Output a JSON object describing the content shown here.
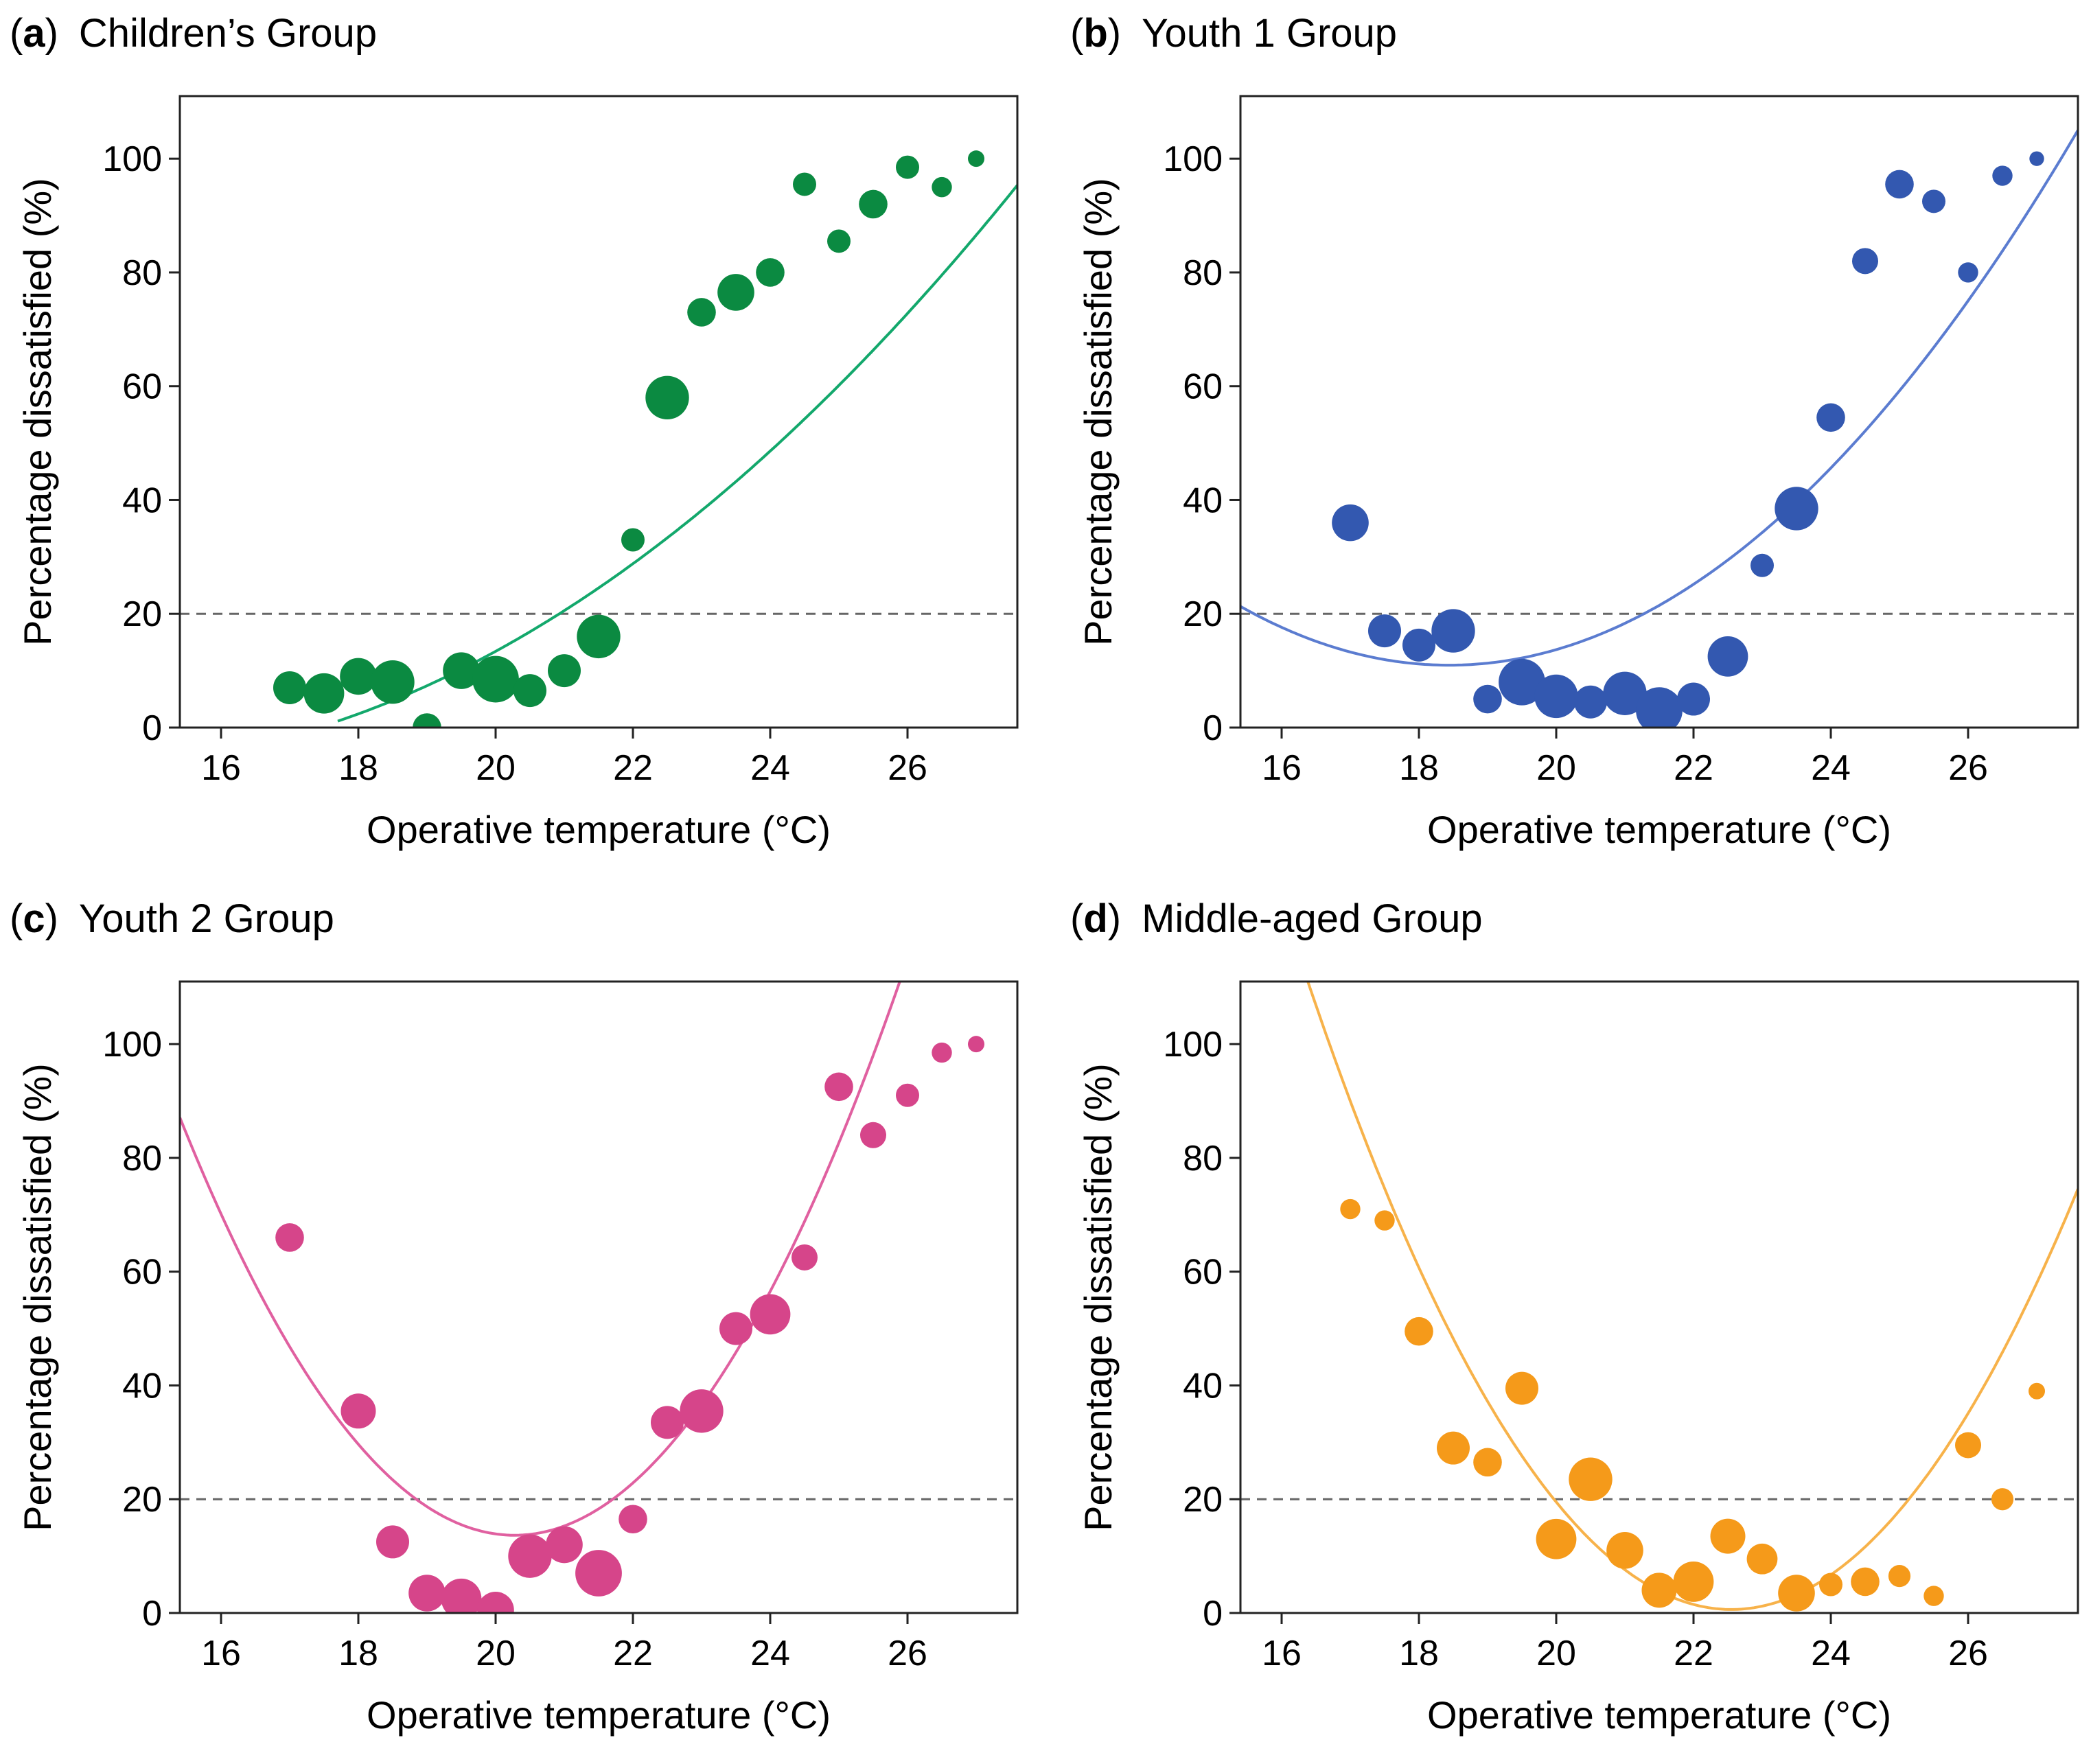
{
  "chart_data": [
    {
      "type": "scatter",
      "panel_letter": "a",
      "title": "Children’s Group",
      "xlabel": "Operative temperature (°C)",
      "ylabel": "Percentage dissatisfied (%)",
      "xlim": [
        15.4,
        27.6
      ],
      "ylim": [
        0,
        111
      ],
      "xticks": [
        "16",
        "18",
        "20",
        "22",
        "24",
        "26"
      ],
      "yticks": [
        "0",
        "20",
        "40",
        "60",
        "80",
        "100"
      ],
      "threshold": 20,
      "color": "#0b8a41",
      "fit_color": "#13a86c",
      "fit": {
        "a": 0.55,
        "b": -15.4,
        "c": 101.4,
        "x_range": [
          17.7,
          27.6
        ]
      },
      "points": [
        {
          "x": 17.0,
          "y": 7,
          "w": 4
        },
        {
          "x": 17.5,
          "y": 6,
          "w": 6
        },
        {
          "x": 18.0,
          "y": 9,
          "w": 5
        },
        {
          "x": 18.5,
          "y": 8,
          "w": 7
        },
        {
          "x": 19.0,
          "y": 0,
          "w": 3
        },
        {
          "x": 19.5,
          "y": 10,
          "w": 5
        },
        {
          "x": 20.0,
          "y": 8.5,
          "w": 8
        },
        {
          "x": 20.5,
          "y": 6.5,
          "w": 4
        },
        {
          "x": 21.0,
          "y": 10,
          "w": 4
        },
        {
          "x": 21.5,
          "y": 16,
          "w": 7
        },
        {
          "x": 22.0,
          "y": 33,
          "w": 2
        },
        {
          "x": 22.5,
          "y": 58,
          "w": 7
        },
        {
          "x": 23.0,
          "y": 73,
          "w": 3
        },
        {
          "x": 23.5,
          "y": 76.5,
          "w": 5
        },
        {
          "x": 24.0,
          "y": 80,
          "w": 3
        },
        {
          "x": 24.5,
          "y": 95.5,
          "w": 2
        },
        {
          "x": 25.0,
          "y": 85.5,
          "w": 2
        },
        {
          "x": 25.5,
          "y": 92,
          "w": 3
        },
        {
          "x": 26.0,
          "y": 98.5,
          "w": 2
        },
        {
          "x": 26.5,
          "y": 95,
          "w": 1.5
        },
        {
          "x": 27.0,
          "y": 100,
          "w": 1
        }
      ]
    },
    {
      "type": "scatter",
      "panel_letter": "b",
      "title": "Youth 1 Group",
      "xlabel": "Operative temperature (°C)",
      "ylabel": "Percentage dissatisfied (%)",
      "xlim": [
        15.4,
        27.6
      ],
      "ylim": [
        0,
        111
      ],
      "xticks": [
        "16",
        "18",
        "20",
        "22",
        "24",
        "26"
      ],
      "yticks": [
        "0",
        "20",
        "40",
        "60",
        "80",
        "100"
      ],
      "threshold": 20,
      "color": "#3358b0",
      "fit_color": "#5b7cd0",
      "fit": {
        "a": 1.12,
        "b": -41.3,
        "c": 391.7,
        "x_range": [
          15.4,
          27.6
        ]
      },
      "points": [
        {
          "x": 17.0,
          "y": 36,
          "w": 5
        },
        {
          "x": 17.5,
          "y": 17,
          "w": 4
        },
        {
          "x": 18.0,
          "y": 14.5,
          "w": 4
        },
        {
          "x": 18.5,
          "y": 17,
          "w": 7
        },
        {
          "x": 19.0,
          "y": 5,
          "w": 3
        },
        {
          "x": 19.5,
          "y": 8,
          "w": 8
        },
        {
          "x": 20.0,
          "y": 5.5,
          "w": 7
        },
        {
          "x": 20.5,
          "y": 4.5,
          "w": 4
        },
        {
          "x": 21.0,
          "y": 6,
          "w": 7
        },
        {
          "x": 21.5,
          "y": 3,
          "w": 8
        },
        {
          "x": 22.0,
          "y": 5,
          "w": 4
        },
        {
          "x": 22.5,
          "y": 12.5,
          "w": 6
        },
        {
          "x": 23.0,
          "y": 28.5,
          "w": 2
        },
        {
          "x": 23.5,
          "y": 38.5,
          "w": 7
        },
        {
          "x": 24.0,
          "y": 54.5,
          "w": 3
        },
        {
          "x": 24.5,
          "y": 82,
          "w": 2.5
        },
        {
          "x": 25.0,
          "y": 95.5,
          "w": 3
        },
        {
          "x": 25.5,
          "y": 92.5,
          "w": 2
        },
        {
          "x": 26.0,
          "y": 80,
          "w": 1.5
        },
        {
          "x": 26.5,
          "y": 97,
          "w": 1.5
        },
        {
          "x": 27.0,
          "y": 100,
          "w": 0.8
        }
      ]
    },
    {
      "type": "scatter",
      "panel_letter": "c",
      "title": "Youth 2 Group",
      "xlabel": "Operative temperature (°C)",
      "ylabel": "Percentage dissatisfied (%)",
      "xlim": [
        15.4,
        27.6
      ],
      "ylim": [
        0,
        111
      ],
      "xticks": [
        "16",
        "18",
        "20",
        "22",
        "24",
        "26"
      ],
      "yticks": [
        "0",
        "20",
        "40",
        "60",
        "80",
        "100"
      ],
      "threshold": 20,
      "color": "#d6458a",
      "fit_color": "#e060a0",
      "fit": {
        "a": 3.09,
        "b": -125.3,
        "c": 1283.9,
        "x_range": [
          15.4,
          27.6
        ]
      },
      "points": [
        {
          "x": 17.0,
          "y": 66,
          "w": 3
        },
        {
          "x": 18.0,
          "y": 35.5,
          "w": 4.5
        },
        {
          "x": 18.5,
          "y": 12.5,
          "w": 4
        },
        {
          "x": 19.0,
          "y": 3.5,
          "w": 5
        },
        {
          "x": 19.5,
          "y": 2.5,
          "w": 6
        },
        {
          "x": 20.0,
          "y": 0.5,
          "w": 5
        },
        {
          "x": 20.5,
          "y": 10,
          "w": 7
        },
        {
          "x": 21.0,
          "y": 12,
          "w": 5
        },
        {
          "x": 21.5,
          "y": 7,
          "w": 8
        },
        {
          "x": 22.0,
          "y": 16.5,
          "w": 3
        },
        {
          "x": 22.5,
          "y": 33.5,
          "w": 4
        },
        {
          "x": 23.0,
          "y": 35.5,
          "w": 7
        },
        {
          "x": 23.5,
          "y": 50,
          "w": 4
        },
        {
          "x": 24.0,
          "y": 52.5,
          "w": 6
        },
        {
          "x": 24.5,
          "y": 62.5,
          "w": 2.5
        },
        {
          "x": 25.0,
          "y": 92.5,
          "w": 3
        },
        {
          "x": 25.5,
          "y": 84,
          "w": 2.5
        },
        {
          "x": 26.0,
          "y": 91,
          "w": 2
        },
        {
          "x": 26.5,
          "y": 98.5,
          "w": 1.5
        },
        {
          "x": 27.0,
          "y": 100,
          "w": 1
        }
      ]
    },
    {
      "type": "scatter",
      "panel_letter": "d",
      "title": "Middle-aged Group",
      "xlabel": "Operative temperature (°C)",
      "ylabel": "Percentage dissatisfied (%)",
      "xlim": [
        15.4,
        27.6
      ],
      "ylim": [
        0,
        111
      ],
      "xticks": [
        "16",
        "18",
        "20",
        "22",
        "24",
        "26"
      ],
      "yticks": [
        "0",
        "20",
        "40",
        "60",
        "80",
        "100"
      ],
      "threshold": 20,
      "color": "#f59a1a",
      "fit_color": "#f7b24a",
      "fit": {
        "a": 2.9,
        "b": -130.8,
        "c": 1475.5,
        "x_range": [
          15.5,
          27.6
        ]
      },
      "points": [
        {
          "x": 17.0,
          "y": 71,
          "w": 1.5
        },
        {
          "x": 17.5,
          "y": 69,
          "w": 1.5
        },
        {
          "x": 18.0,
          "y": 49.5,
          "w": 3
        },
        {
          "x": 18.5,
          "y": 29,
          "w": 4
        },
        {
          "x": 19.0,
          "y": 26.5,
          "w": 3
        },
        {
          "x": 19.5,
          "y": 39.5,
          "w": 4
        },
        {
          "x": 20.0,
          "y": 13,
          "w": 6
        },
        {
          "x": 20.5,
          "y": 23.5,
          "w": 7
        },
        {
          "x": 21.0,
          "y": 11,
          "w": 5
        },
        {
          "x": 21.5,
          "y": 4,
          "w": 4.5
        },
        {
          "x": 22.0,
          "y": 5.5,
          "w": 6
        },
        {
          "x": 22.5,
          "y": 13.5,
          "w": 4.5
        },
        {
          "x": 23.0,
          "y": 9.5,
          "w": 3.5
        },
        {
          "x": 23.5,
          "y": 3.5,
          "w": 5
        },
        {
          "x": 24.0,
          "y": 5,
          "w": 2
        },
        {
          "x": 24.5,
          "y": 5.5,
          "w": 3
        },
        {
          "x": 25.0,
          "y": 6.5,
          "w": 1.8
        },
        {
          "x": 25.5,
          "y": 3,
          "w": 1.5
        },
        {
          "x": 26.0,
          "y": 29.5,
          "w": 2.5
        },
        {
          "x": 26.5,
          "y": 20,
          "w": 1.8
        },
        {
          "x": 27.0,
          "y": 39,
          "w": 1
        }
      ]
    }
  ]
}
